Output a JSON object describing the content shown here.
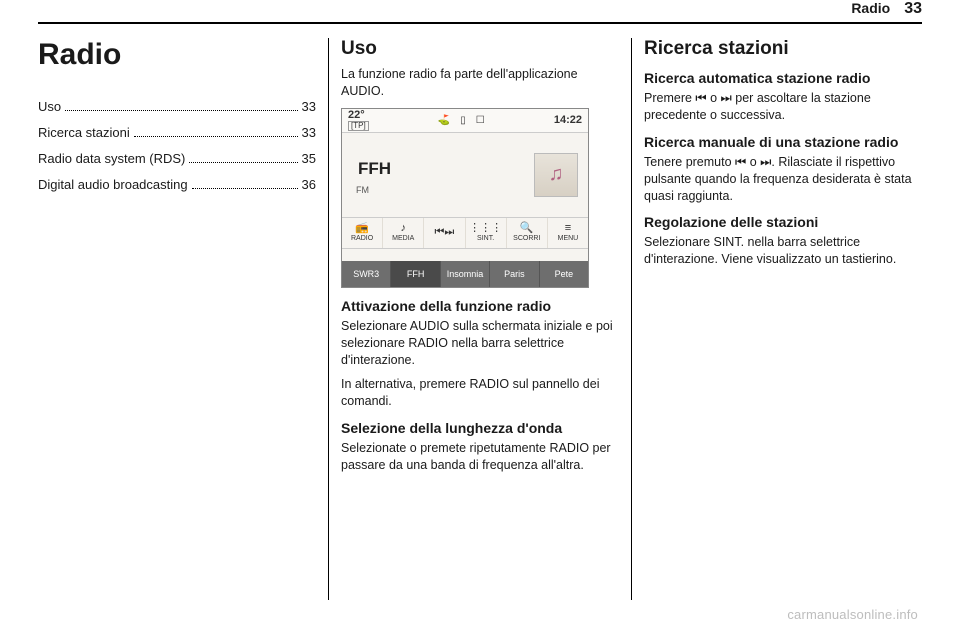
{
  "header": {
    "chapter": "Radio",
    "page": "33"
  },
  "col1": {
    "title": "Radio",
    "toc": [
      {
        "label": "Uso",
        "page": "33"
      },
      {
        "label": "Ricerca stazioni",
        "page": "33"
      },
      {
        "label": "Radio data system (RDS)",
        "page": "35"
      },
      {
        "label": "Digital audio broadcasting",
        "page": "36"
      }
    ]
  },
  "col2": {
    "h2": "Uso",
    "intro": "La funzione radio fa parte dell'applicazione AUDIO.",
    "screen": {
      "temp": "22°",
      "tp": "[TP]",
      "time": "14:22",
      "station": "FFH",
      "band": "FM",
      "nav": [
        {
          "glyph": "📻",
          "label": "RADIO"
        },
        {
          "glyph": "♪",
          "label": "MEDIA"
        },
        {
          "glyph": "⏮⏭",
          "label": ""
        },
        {
          "glyph": "⋮⋮⋮",
          "label": "SINT."
        },
        {
          "glyph": "🔍",
          "label": "SCORRI"
        },
        {
          "glyph": "≡",
          "label": "MENU"
        }
      ],
      "presets": [
        "SWR3",
        "FFH",
        "Insomnia",
        "Paris",
        "Pete"
      ],
      "active_preset_index": 1,
      "colors": {
        "frame": "#888888",
        "bg": "#f6f4f0",
        "topbar_bg": "#faf9f6",
        "preset_bg": "#6e6e6e",
        "preset_active_bg": "#4a4a4a",
        "preset_text": "#ffffff"
      }
    },
    "h3a": "Attivazione della funzione radio",
    "p1": "Selezionare AUDIO sulla schermata iniziale e poi selezionare RADIO nella barra selettrice d'interazione.",
    "p2": "In alternativa, premere RADIO sul pannello dei comandi.",
    "h3b": "Selezione della lunghezza d'onda",
    "p3": "Selezionate o premete ripetutamente RADIO per passare da una banda di frequenza all'altra."
  },
  "col3": {
    "h2": "Ricerca stazioni",
    "h3a": "Ricerca automatica stazione radio",
    "p1": "Premere ⏮ o ⏭ per ascoltare la stazione precedente o successiva.",
    "h3b": "Ricerca manuale di una stazione radio",
    "p2": "Tenere premuto ⏮ o ⏭. Rilasciate il rispettivo pulsante quando la frequenza desiderata è stata quasi raggiunta.",
    "h3c": "Regolazione delle stazioni",
    "p3": "Selezionare SINT. nella barra selettrice d'interazione. Viene visualizzato un tastierino."
  },
  "watermark": "carmanualsonline.info"
}
